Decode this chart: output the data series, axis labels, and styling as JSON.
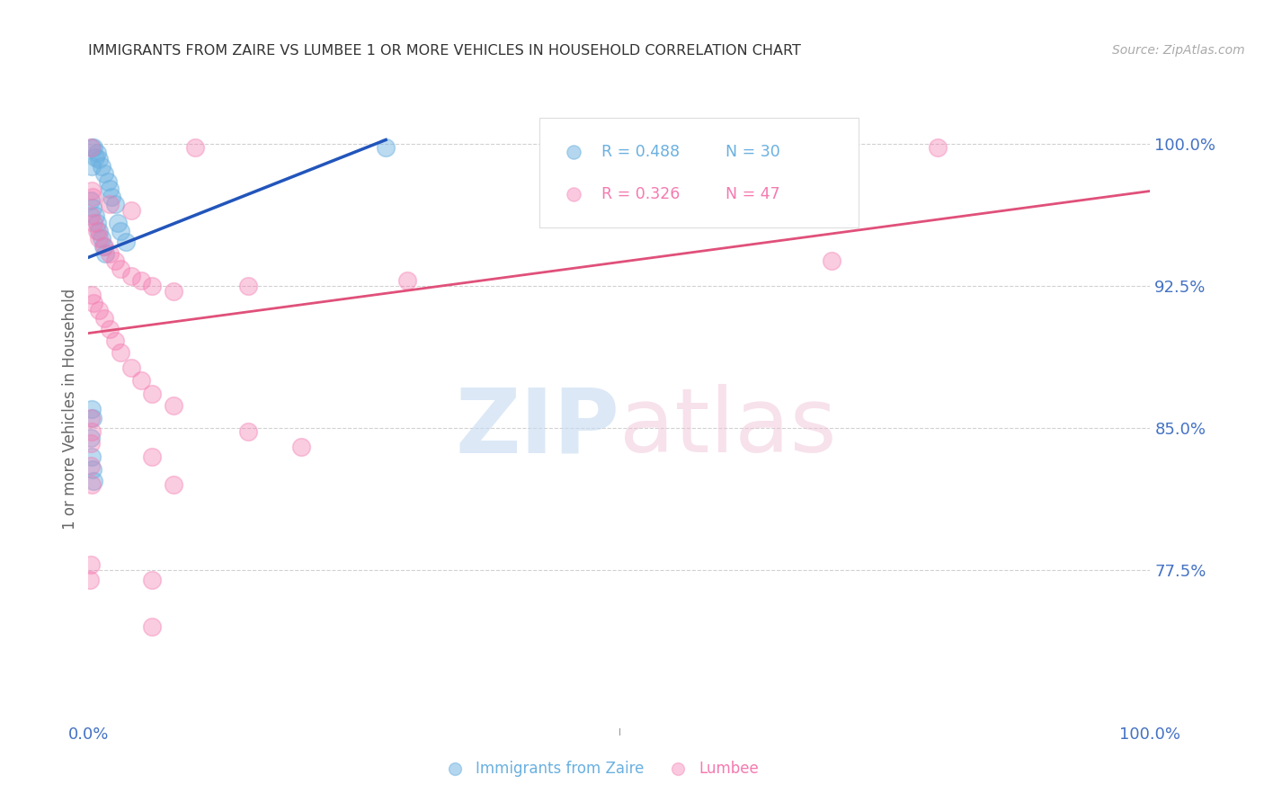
{
  "title": "IMMIGRANTS FROM ZAIRE VS LUMBEE 1 OR MORE VEHICLES IN HOUSEHOLD CORRELATION CHART",
  "source": "Source: ZipAtlas.com",
  "ylabel": "1 or more Vehicles in Household",
  "ytick_labels": [
    "100.0%",
    "92.5%",
    "85.0%",
    "77.5%"
  ],
  "ytick_values": [
    1.0,
    0.925,
    0.85,
    0.775
  ],
  "xlim": [
    0.0,
    1.0
  ],
  "ylim": [
    0.695,
    1.025
  ],
  "legend_entries": [
    {
      "label_r": "R = 0.488",
      "label_n": "N = 30",
      "color": "#6ab0e0"
    },
    {
      "label_r": "R = 0.326",
      "label_n": "N = 47",
      "color": "#f47ab0"
    }
  ],
  "zaire_color": "#6ab0e0",
  "lumbee_color": "#f47ab0",
  "zaire_scatter": [
    [
      0.003,
      0.998
    ],
    [
      0.005,
      0.998
    ],
    [
      0.006,
      0.993
    ],
    [
      0.003,
      0.988
    ],
    [
      0.008,
      0.995
    ],
    [
      0.01,
      0.992
    ],
    [
      0.012,
      0.988
    ],
    [
      0.015,
      0.984
    ],
    [
      0.018,
      0.98
    ],
    [
      0.02,
      0.976
    ],
    [
      0.022,
      0.972
    ],
    [
      0.025,
      0.968
    ],
    [
      0.028,
      0.958
    ],
    [
      0.03,
      0.954
    ],
    [
      0.035,
      0.948
    ],
    [
      0.002,
      0.97
    ],
    [
      0.004,
      0.966
    ],
    [
      0.006,
      0.962
    ],
    [
      0.008,
      0.958
    ],
    [
      0.01,
      0.954
    ],
    [
      0.012,
      0.95
    ],
    [
      0.014,
      0.946
    ],
    [
      0.016,
      0.942
    ],
    [
      0.003,
      0.86
    ],
    [
      0.004,
      0.855
    ],
    [
      0.002,
      0.845
    ],
    [
      0.003,
      0.835
    ],
    [
      0.004,
      0.828
    ],
    [
      0.005,
      0.822
    ],
    [
      0.28,
      0.998
    ]
  ],
  "lumbee_scatter": [
    [
      0.002,
      0.998
    ],
    [
      0.1,
      0.998
    ],
    [
      0.8,
      0.998
    ],
    [
      0.003,
      0.975
    ],
    [
      0.004,
      0.972
    ],
    [
      0.02,
      0.968
    ],
    [
      0.04,
      0.965
    ],
    [
      0.002,
      0.962
    ],
    [
      0.005,
      0.958
    ],
    [
      0.008,
      0.954
    ],
    [
      0.01,
      0.95
    ],
    [
      0.015,
      0.946
    ],
    [
      0.02,
      0.942
    ],
    [
      0.025,
      0.938
    ],
    [
      0.5,
      0.968
    ],
    [
      0.03,
      0.934
    ],
    [
      0.04,
      0.93
    ],
    [
      0.05,
      0.928
    ],
    [
      0.06,
      0.925
    ],
    [
      0.08,
      0.922
    ],
    [
      0.7,
      0.938
    ],
    [
      0.3,
      0.928
    ],
    [
      0.15,
      0.925
    ],
    [
      0.003,
      0.92
    ],
    [
      0.005,
      0.916
    ],
    [
      0.01,
      0.912
    ],
    [
      0.015,
      0.908
    ],
    [
      0.02,
      0.902
    ],
    [
      0.025,
      0.896
    ],
    [
      0.03,
      0.89
    ],
    [
      0.04,
      0.882
    ],
    [
      0.05,
      0.875
    ],
    [
      0.06,
      0.868
    ],
    [
      0.08,
      0.862
    ],
    [
      0.002,
      0.855
    ],
    [
      0.003,
      0.848
    ],
    [
      0.15,
      0.848
    ],
    [
      0.002,
      0.842
    ],
    [
      0.2,
      0.84
    ],
    [
      0.002,
      0.83
    ],
    [
      0.002,
      0.778
    ],
    [
      0.06,
      0.835
    ],
    [
      0.003,
      0.82
    ],
    [
      0.08,
      0.82
    ],
    [
      0.001,
      0.77
    ],
    [
      0.06,
      0.77
    ],
    [
      0.06,
      0.745
    ]
  ],
  "zaire_line": {
    "x0": 0.0,
    "y0": 0.94,
    "x1": 0.28,
    "y1": 1.002
  },
  "lumbee_line": {
    "x0": 0.0,
    "y0": 0.9,
    "x1": 1.0,
    "y1": 0.975
  },
  "background_color": "#ffffff",
  "grid_color": "#cccccc",
  "title_color": "#333333",
  "axis_label_color": "#4472c4"
}
